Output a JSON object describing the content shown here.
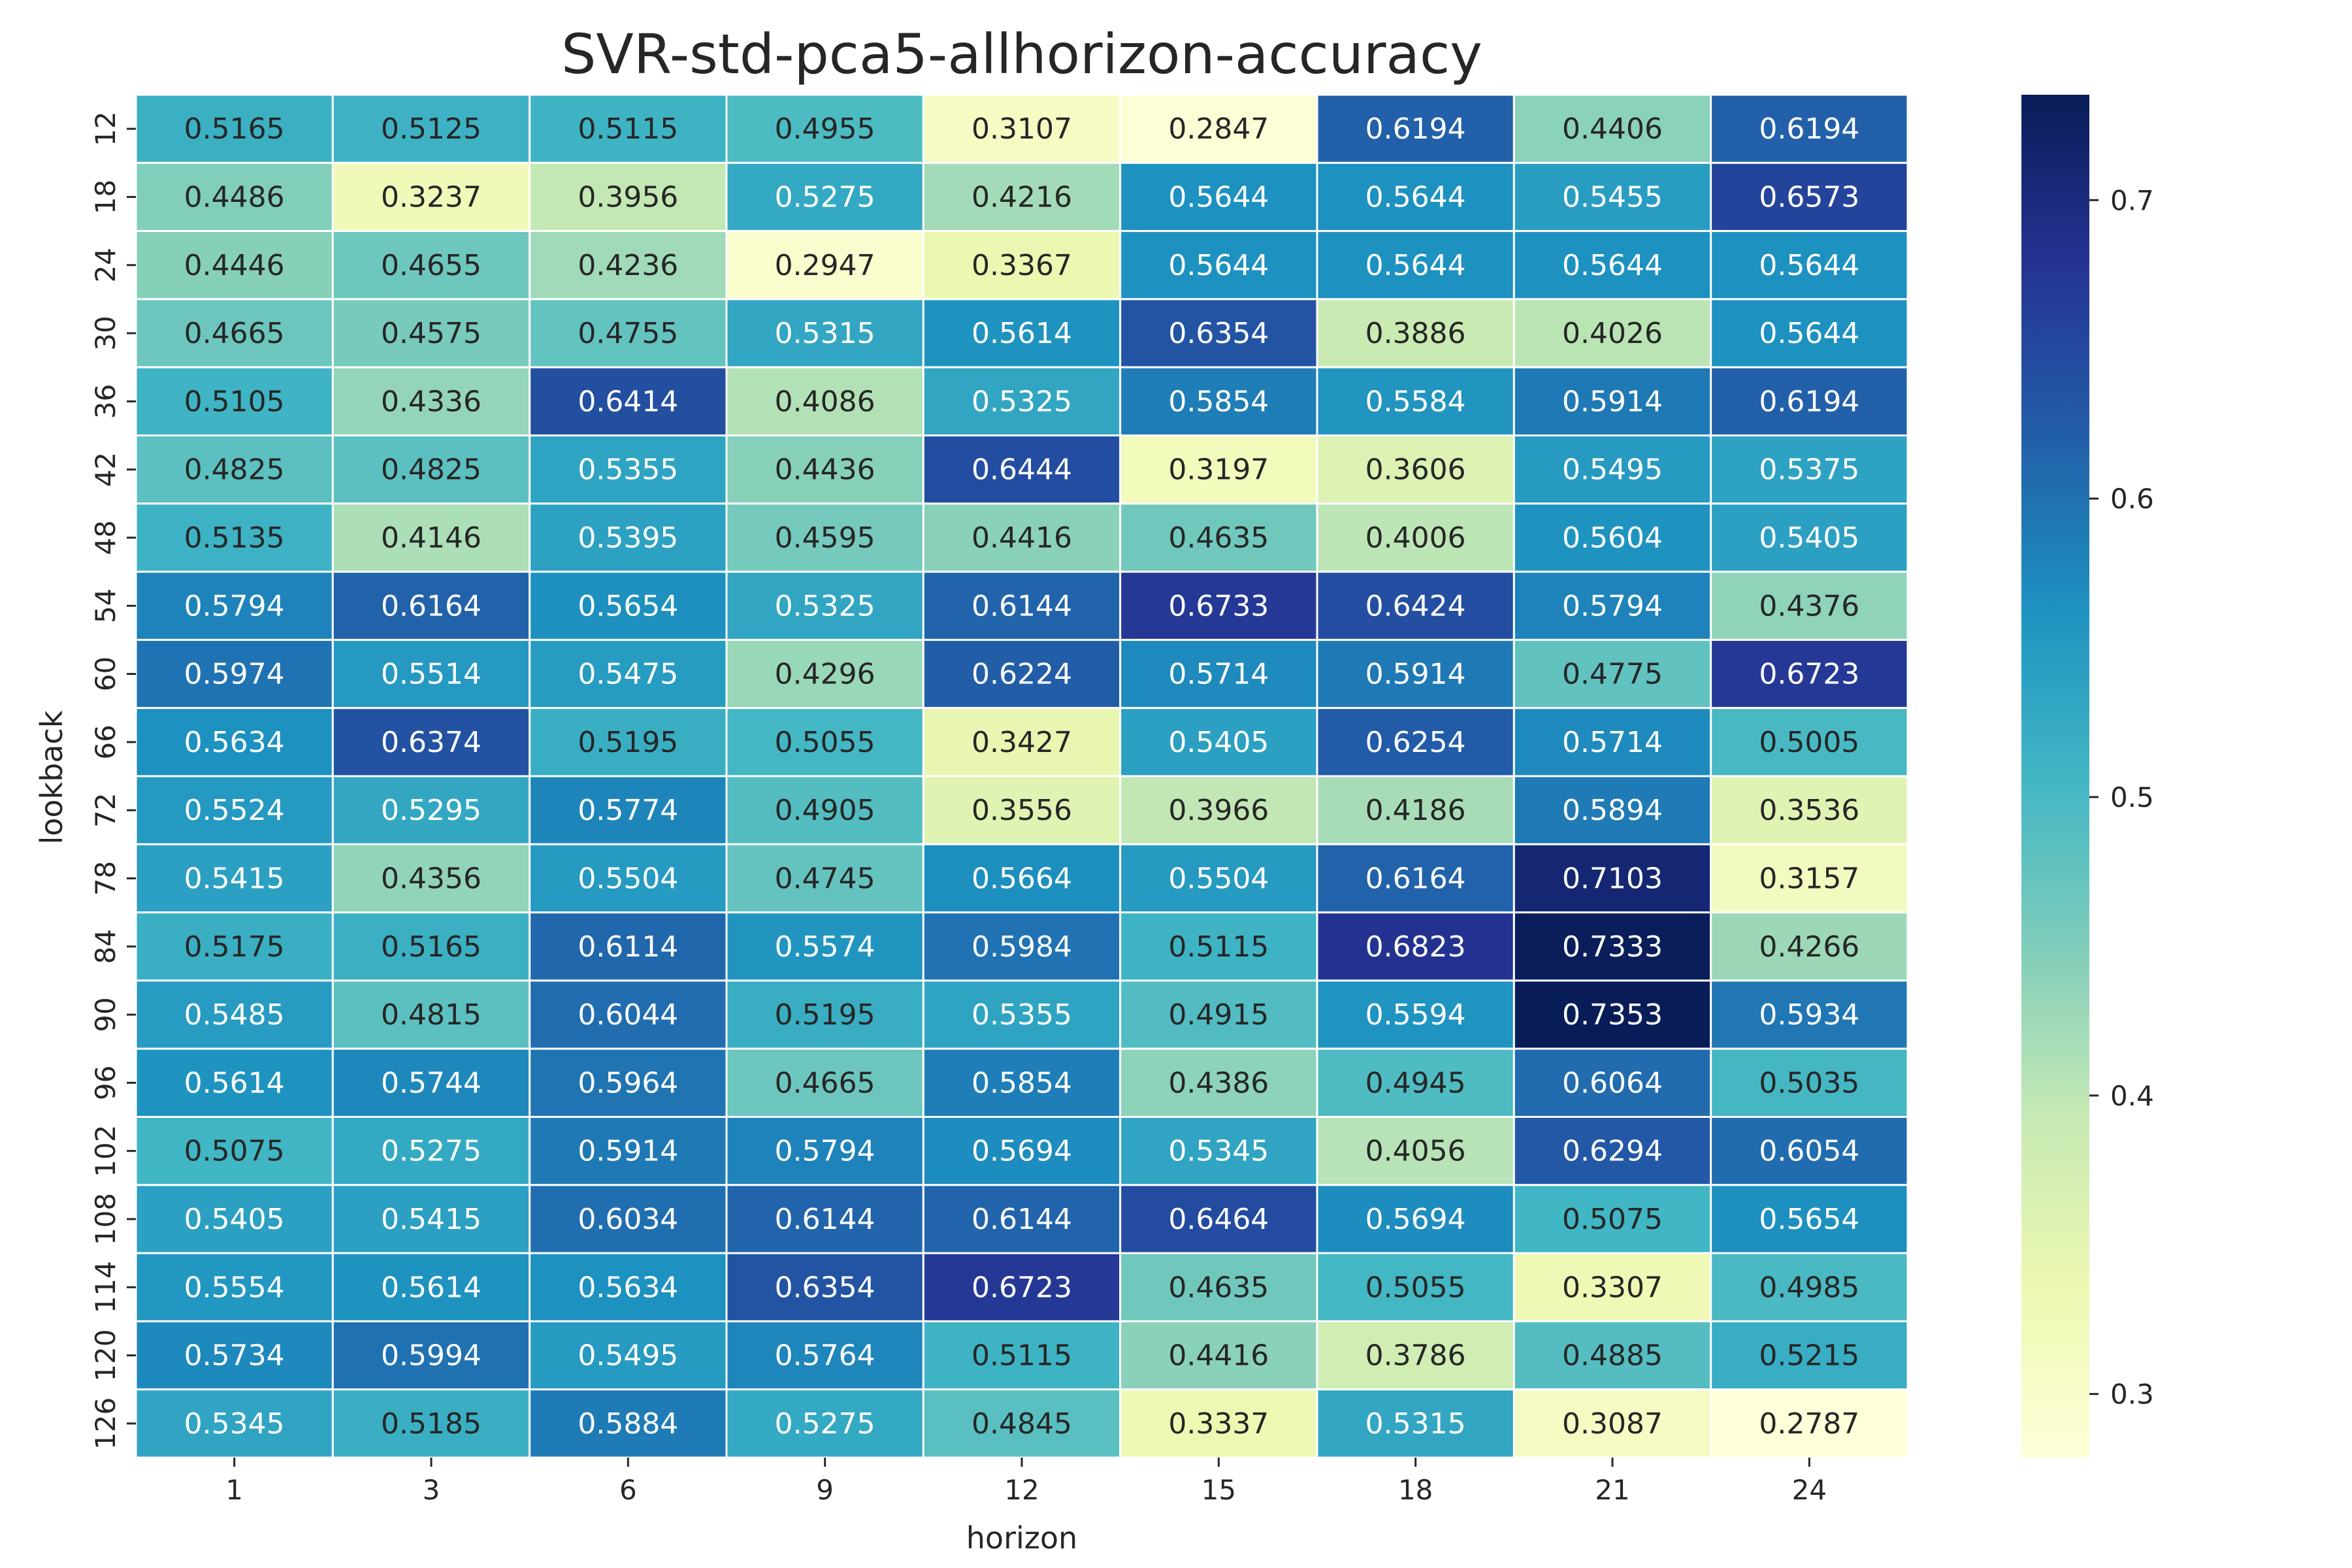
{
  "chart_data": {
    "type": "heatmap",
    "title": "SVR-std-pca5-allhorizon-accuracy",
    "xlabel": "horizon",
    "ylabel": "lookback",
    "x": [
      "1",
      "3",
      "6",
      "9",
      "12",
      "15",
      "18",
      "21",
      "24"
    ],
    "y": [
      "12",
      "18",
      "24",
      "30",
      "36",
      "42",
      "48",
      "54",
      "60",
      "66",
      "72",
      "78",
      "84",
      "90",
      "96",
      "102",
      "108",
      "114",
      "120",
      "126"
    ],
    "values": [
      [
        0.5165,
        0.5125,
        0.5115,
        0.4955,
        0.3107,
        0.2847,
        0.6194,
        0.4406,
        0.6194
      ],
      [
        0.4486,
        0.3237,
        0.3956,
        0.5275,
        0.4216,
        0.5644,
        0.5644,
        0.5455,
        0.6573
      ],
      [
        0.4446,
        0.4655,
        0.4236,
        0.2947,
        0.3367,
        0.5644,
        0.5644,
        0.5644,
        0.5644
      ],
      [
        0.4665,
        0.4575,
        0.4755,
        0.5315,
        0.5614,
        0.6354,
        0.3886,
        0.4026,
        0.5644
      ],
      [
        0.5105,
        0.4336,
        0.6414,
        0.4086,
        0.5325,
        0.5854,
        0.5584,
        0.5914,
        0.6194
      ],
      [
        0.4825,
        0.4825,
        0.5355,
        0.4436,
        0.6444,
        0.3197,
        0.3606,
        0.5495,
        0.5375
      ],
      [
        0.5135,
        0.4146,
        0.5395,
        0.4595,
        0.4416,
        0.4635,
        0.4006,
        0.5604,
        0.5405
      ],
      [
        0.5794,
        0.6164,
        0.5654,
        0.5325,
        0.6144,
        0.6733,
        0.6424,
        0.5794,
        0.4376
      ],
      [
        0.5974,
        0.5514,
        0.5475,
        0.4296,
        0.6224,
        0.5714,
        0.5914,
        0.4775,
        0.6723
      ],
      [
        0.5634,
        0.6374,
        0.5195,
        0.5055,
        0.3427,
        0.5405,
        0.6254,
        0.5714,
        0.5005
      ],
      [
        0.5524,
        0.5295,
        0.5774,
        0.4905,
        0.3556,
        0.3966,
        0.4186,
        0.5894,
        0.3536
      ],
      [
        0.5415,
        0.4356,
        0.5504,
        0.4745,
        0.5664,
        0.5504,
        0.6164,
        0.7103,
        0.3157
      ],
      [
        0.5175,
        0.5165,
        0.6114,
        0.5574,
        0.5984,
        0.5115,
        0.6823,
        0.7333,
        0.4266
      ],
      [
        0.5485,
        0.4815,
        0.6044,
        0.5195,
        0.5355,
        0.4915,
        0.5594,
        0.7353,
        0.5934
      ],
      [
        0.5614,
        0.5744,
        0.5964,
        0.4665,
        0.5854,
        0.4386,
        0.4945,
        0.6064,
        0.5035
      ],
      [
        0.5075,
        0.5275,
        0.5914,
        0.5794,
        0.5694,
        0.5345,
        0.4056,
        0.6294,
        0.6054
      ],
      [
        0.5405,
        0.5415,
        0.6034,
        0.6144,
        0.6144,
        0.6464,
        0.5694,
        0.5075,
        0.5654
      ],
      [
        0.5554,
        0.5614,
        0.5634,
        0.6354,
        0.6723,
        0.4635,
        0.5055,
        0.3307,
        0.4985
      ],
      [
        0.5734,
        0.5994,
        0.5495,
        0.5764,
        0.5115,
        0.4416,
        0.3786,
        0.4885,
        0.5215
      ],
      [
        0.5345,
        0.5185,
        0.5884,
        0.5275,
        0.4845,
        0.3337,
        0.5315,
        0.3087,
        0.2787
      ]
    ],
    "value_format": "4 decimals",
    "colormap": "YlGnBu",
    "colormap_stops": [
      "#ffffd9",
      "#edf8b1",
      "#c7e9b4",
      "#7fcdbb",
      "#41b6c4",
      "#1d91c0",
      "#225ea8",
      "#253494",
      "#081d58"
    ],
    "color_range": [
      0.2787,
      0.7353
    ],
    "colorbar_ticks": [
      "0.3",
      "0.4",
      "0.5",
      "0.6",
      "0.7"
    ],
    "grid": false,
    "cell_borders": "#ffffff"
  }
}
